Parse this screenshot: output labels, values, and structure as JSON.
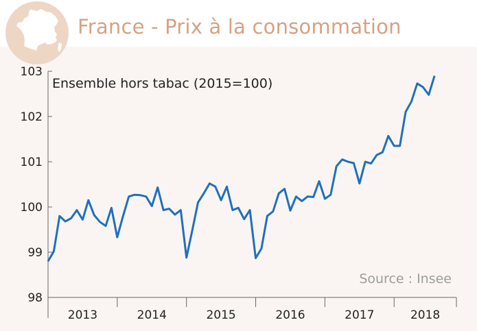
{
  "header": {
    "title": "France - Prix à la consommation",
    "icon": "france-map-icon",
    "title_color": "#d7a182",
    "badge_color": "#eed6c4"
  },
  "chart_data": {
    "type": "line",
    "subtitle": "Ensemble hors tabac (2015=100)",
    "source": "Source : Insee",
    "xlabel": "",
    "ylabel": "",
    "ylim": [
      98,
      103
    ],
    "yticks": [
      "98",
      "99",
      "100",
      "101",
      "102",
      "103"
    ],
    "years": [
      "2013",
      "2014",
      "2015",
      "2016",
      "2017",
      "2018"
    ],
    "line_color": "#1f6fbf",
    "background": "#faf5f2",
    "grid": false,
    "series": [
      {
        "values": [
          98.8,
          99.02,
          99.8,
          99.68,
          99.75,
          99.93,
          99.72,
          100.15,
          99.82,
          99.67,
          99.58,
          99.98,
          99.33,
          99.8,
          100.23,
          100.27,
          100.26,
          100.23,
          100.02,
          100.43,
          99.93,
          99.96,
          99.83,
          99.93,
          98.88,
          99.48,
          100.1,
          100.3,
          100.52,
          100.45,
          100.15,
          100.45,
          99.93,
          99.98,
          99.73,
          99.93,
          98.87,
          99.08,
          99.8,
          99.9,
          100.3,
          100.4,
          99.92,
          100.23,
          100.13,
          100.23,
          100.22,
          100.57,
          100.18,
          100.27,
          100.9,
          101.05,
          101.0,
          100.97,
          100.52,
          101.0,
          100.96,
          101.15,
          101.21,
          101.57,
          101.35,
          101.35,
          102.1,
          102.33,
          102.73,
          102.65,
          102.48,
          102.9
        ]
      }
    ]
  }
}
